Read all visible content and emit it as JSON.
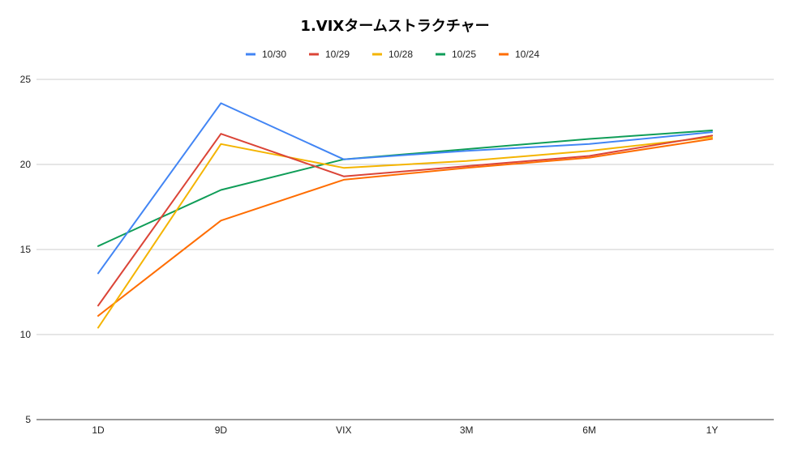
{
  "chart_data": {
    "type": "line",
    "title": "1.VIXタームストラクチャー",
    "categories": [
      "1D",
      "9D",
      "VIX",
      "3M",
      "6M",
      "1Y"
    ],
    "ylim": [
      5,
      25
    ],
    "yticks": [
      5,
      10,
      15,
      20,
      25
    ],
    "grid": true,
    "legend_position": "top",
    "series": [
      {
        "name": "10/30",
        "color": "#4285f4",
        "values": [
          13.6,
          23.6,
          20.3,
          20.8,
          21.2,
          21.9
        ]
      },
      {
        "name": "10/29",
        "color": "#db4437",
        "values": [
          11.7,
          21.8,
          19.3,
          19.9,
          20.5,
          21.7
        ]
      },
      {
        "name": "10/28",
        "color": "#f4b400",
        "values": [
          10.4,
          21.2,
          19.8,
          20.2,
          20.8,
          21.6
        ]
      },
      {
        "name": "10/25",
        "color": "#0f9d58",
        "values": [
          15.2,
          18.5,
          20.3,
          20.9,
          21.5,
          22.0
        ]
      },
      {
        "name": "10/24",
        "color": "#ff6d00",
        "values": [
          11.1,
          16.7,
          19.1,
          19.8,
          20.4,
          21.5
        ]
      }
    ]
  }
}
